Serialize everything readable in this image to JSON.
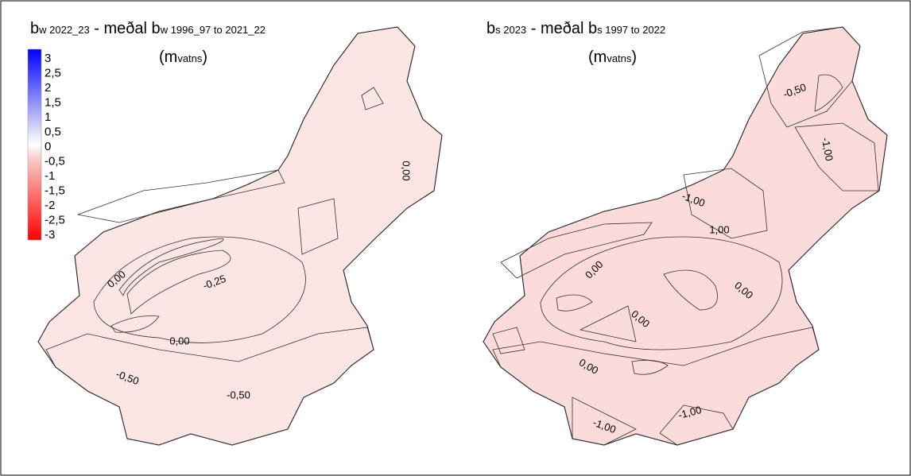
{
  "left_map": {
    "title": [
      "b",
      "w 2022_23",
      " -  meðal b",
      "w 1996_97 to 2021_22"
    ],
    "unit": [
      "(m",
      "vatns",
      ")"
    ],
    "contour_labels": [
      "0,00",
      "-0,25",
      "0,00",
      "-0,50",
      "-0,50",
      "0,00"
    ]
  },
  "right_map": {
    "title": [
      "b",
      "s 2023",
      " -  meðal b",
      "s 1997 to 2022"
    ],
    "unit": [
      "(m",
      "vatns",
      ")"
    ],
    "contour_labels": [
      "-0,50",
      "-1,00",
      "-1,00",
      "1,00",
      "0,00",
      "0,00",
      "0,00",
      "0,00",
      "-1,00",
      "-1,00"
    ]
  },
  "legend": {
    "labels": [
      "3",
      "2,5",
      "2",
      "1,5",
      "1",
      "0,5",
      "0",
      "-0,5",
      "-1",
      "-1,5",
      "-2",
      "-2,5",
      "-3"
    ]
  }
}
